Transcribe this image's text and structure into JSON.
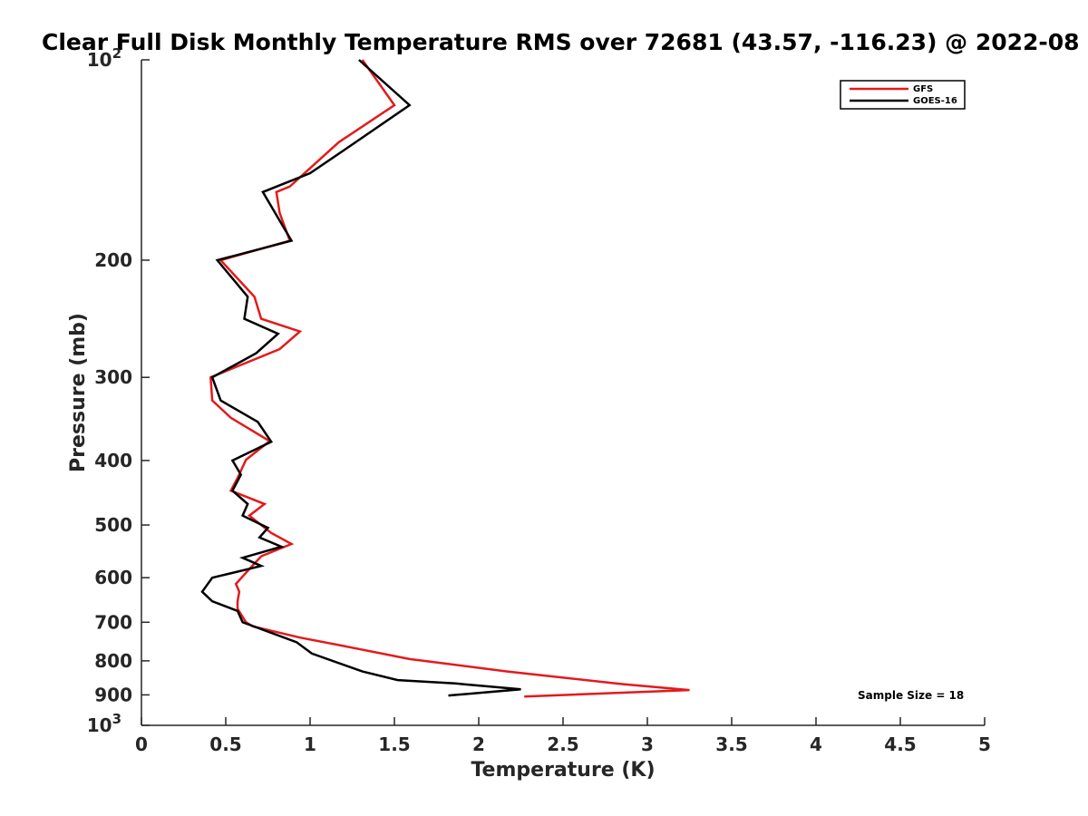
{
  "chart_data": {
    "type": "line",
    "title": "Clear Full Disk Monthly Temperature RMS over 72681 (43.57, -116.23) @ 2022-08",
    "xlabel": "Temperature (K)",
    "ylabel": "Pressure (mb)",
    "xlim": [
      0,
      5
    ],
    "ylim": [
      100,
      1000
    ],
    "yscale": "log",
    "y_reversed": true,
    "grid": false,
    "legend_position": "top-right",
    "x_ticks": [
      0,
      0.5,
      1,
      1.5,
      2,
      2.5,
      3,
      3.5,
      4,
      4.5,
      5
    ],
    "x_tick_labels": [
      "0",
      "0.5",
      "1",
      "1.5",
      "2",
      "2.5",
      "3",
      "3.5",
      "4",
      "4.5",
      "5"
    ],
    "y_ticks": [
      100,
      200,
      300,
      400,
      500,
      600,
      700,
      800,
      900,
      1000
    ],
    "y_tick_labels": [
      {
        "base": "10",
        "exp": "2"
      },
      {
        "base": "200",
        "exp": ""
      },
      {
        "base": "300",
        "exp": ""
      },
      {
        "base": "400",
        "exp": ""
      },
      {
        "base": "500",
        "exp": ""
      },
      {
        "base": "600",
        "exp": ""
      },
      {
        "base": "700",
        "exp": ""
      },
      {
        "base": "800",
        "exp": ""
      },
      {
        "base": "900",
        "exp": ""
      },
      {
        "base": "10",
        "exp": "3"
      }
    ],
    "series": [
      {
        "name": "GFS",
        "color": "#e41a1c",
        "points": [
          [
            1.31,
            100
          ],
          [
            1.5,
            117
          ],
          [
            1.17,
            133
          ],
          [
            0.88,
            155
          ],
          [
            0.8,
            158
          ],
          [
            0.82,
            170
          ],
          [
            0.88,
            187
          ],
          [
            0.47,
            200
          ],
          [
            0.67,
            227
          ],
          [
            0.71,
            245
          ],
          [
            0.94,
            256
          ],
          [
            0.82,
            272
          ],
          [
            0.41,
            300
          ],
          [
            0.42,
            325
          ],
          [
            0.53,
            345
          ],
          [
            0.76,
            374
          ],
          [
            0.62,
            399
          ],
          [
            0.57,
            425
          ],
          [
            0.53,
            444
          ],
          [
            0.73,
            465
          ],
          [
            0.64,
            484
          ],
          [
            0.77,
            514
          ],
          [
            0.89,
            534
          ],
          [
            0.71,
            557
          ],
          [
            0.63,
            586
          ],
          [
            0.56,
            613
          ],
          [
            0.58,
            630
          ],
          [
            0.57,
            651
          ],
          [
            0.57,
            668
          ],
          [
            0.62,
            700
          ],
          [
            0.66,
            710
          ],
          [
            0.94,
            738
          ],
          [
            1.2,
            760
          ],
          [
            1.59,
            795
          ],
          [
            2.17,
            830
          ],
          [
            2.85,
            867
          ],
          [
            3.25,
            885
          ],
          [
            2.27,
            905
          ]
        ]
      },
      {
        "name": "GOES-16",
        "color": "#000000",
        "points": [
          [
            1.29,
            100
          ],
          [
            1.59,
            117
          ],
          [
            1.27,
            133
          ],
          [
            1.0,
            148
          ],
          [
            0.72,
            158
          ],
          [
            0.89,
            187
          ],
          [
            0.45,
            200
          ],
          [
            0.63,
            227
          ],
          [
            0.61,
            245
          ],
          [
            0.81,
            258
          ],
          [
            0.68,
            276
          ],
          [
            0.42,
            300
          ],
          [
            0.47,
            325
          ],
          [
            0.69,
            350
          ],
          [
            0.77,
            375
          ],
          [
            0.54,
            400
          ],
          [
            0.59,
            420
          ],
          [
            0.54,
            444
          ],
          [
            0.63,
            465
          ],
          [
            0.6,
            484
          ],
          [
            0.75,
            505
          ],
          [
            0.7,
            522
          ],
          [
            0.83,
            539
          ],
          [
            0.6,
            560
          ],
          [
            0.71,
            576
          ],
          [
            0.42,
            600
          ],
          [
            0.36,
            630
          ],
          [
            0.42,
            651
          ],
          [
            0.57,
            673
          ],
          [
            0.6,
            700
          ],
          [
            0.92,
            750
          ],
          [
            1.01,
            780
          ],
          [
            1.31,
            830
          ],
          [
            1.52,
            855
          ],
          [
            1.86,
            865
          ],
          [
            2.25,
            883
          ],
          [
            1.82,
            902
          ]
        ]
      }
    ],
    "annotations": [
      {
        "text": "Sample Size = 18"
      }
    ]
  }
}
